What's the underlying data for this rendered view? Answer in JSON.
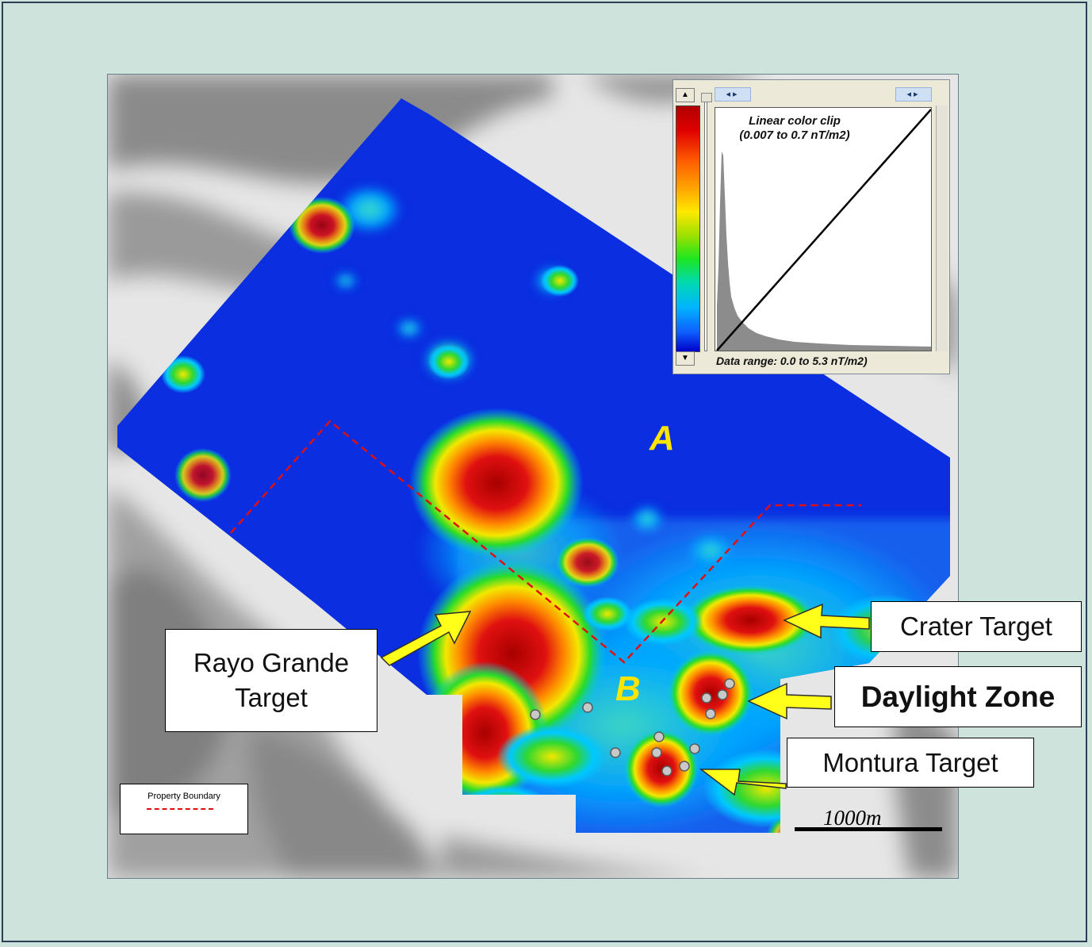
{
  "callouts": {
    "crater": "Crater Target",
    "daylight": "Daylight Zone",
    "montura": "Montura Target",
    "rayo_line1": "Rayo Grande",
    "rayo_line2": "Target"
  },
  "zones": {
    "a": "A",
    "b": "B"
  },
  "scale": {
    "label": "1000m"
  },
  "legend": {
    "label": "Property Boundary",
    "line_color": "#e01010"
  },
  "color_panel": {
    "title_line1": "Linear color clip",
    "title_line2": "(0.007 to 0.7 nT/m2)",
    "data_range": "Data range: 0.0 to 5.3 nT/m2)"
  },
  "colors": {
    "background": "#cfe3dd",
    "frame": "#2b3f57",
    "survey_blue": "#0a2ee0",
    "anomaly_red": "#d81010",
    "zone_label": "#ffe400",
    "arrow": "#ffff1a",
    "boundary": "#e01010"
  }
}
